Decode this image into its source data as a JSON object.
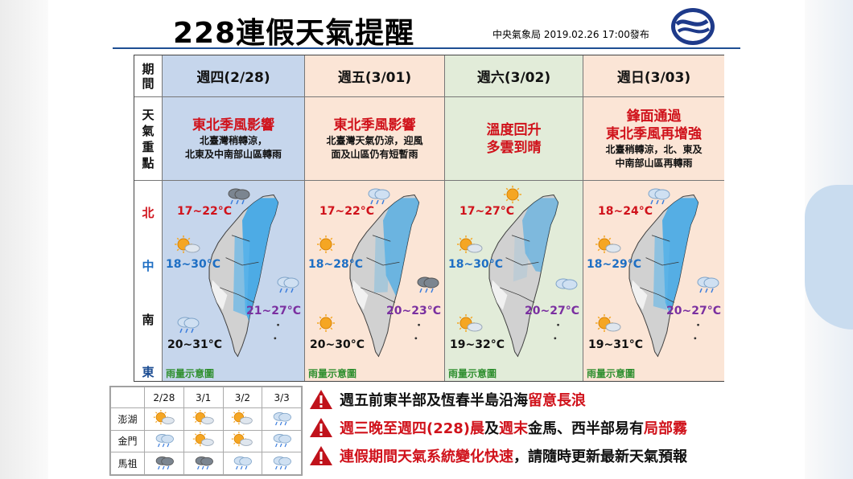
{
  "title": "228連假天氣提醒",
  "issuer": "中央氣象局 2019.02.26 17:00發布",
  "row_labels": {
    "period": [
      "期",
      "間"
    ],
    "focus": [
      "天",
      "氣",
      "重",
      "點"
    ],
    "north": "北",
    "central": "中",
    "south": "南",
    "east": "東"
  },
  "days": [
    {
      "date": "週四(2/28)",
      "headline": [
        "東北季風影響"
      ],
      "detail": [
        "北臺灣稍轉涼，",
        "北東及中南部山區轉雨"
      ],
      "north": "17~22°C",
      "central": "18~30°C",
      "east": "21~27°C",
      "south": "20~31°C",
      "rain_label": "雨量示意圖",
      "bg": "#c6d6ec"
    },
    {
      "date": "週五(3/01)",
      "headline": [
        "東北季風影響"
      ],
      "detail": [
        "北臺灣天氣仍涼，迎風",
        "面及山區仍有短暫雨"
      ],
      "north": "17~22°C",
      "central": "18~28°C",
      "east": "20~23°C",
      "south": "20~30°C",
      "rain_label": "雨量示意圖",
      "bg": "#fbe5d6"
    },
    {
      "date": "週六(3/02)",
      "headline": [
        "溫度回升",
        "多雲到晴"
      ],
      "detail": [],
      "north": "17~27°C",
      "central": "18~30°C",
      "east": "20~27°C",
      "south": "19~32°C",
      "rain_label": "雨量示意圖",
      "bg": "#e2ecd9"
    },
    {
      "date": "週日(3/03)",
      "headline": [
        "鋒面通過",
        "東北季風再增強"
      ],
      "detail": [
        "北臺稍轉涼，北、東及",
        "中南部山區再轉雨"
      ],
      "north": "18~24°C",
      "central": "18~29°C",
      "east": "20~27°C",
      "south": "19~31°C",
      "rain_label": "雨量示意圖",
      "bg": "#fbe5d6"
    }
  ],
  "islands": {
    "dates": [
      "2/28",
      "3/1",
      "3/2",
      "3/3"
    ],
    "rows": [
      {
        "name": "澎湖",
        "icons": [
          "sun-cloud-icon",
          "sun-cloud-icon",
          "sun-cloud-icon",
          "cloud-rain-icon"
        ]
      },
      {
        "name": "金門",
        "icons": [
          "cloud-rain-icon",
          "sun-cloud-icon",
          "sun-cloud-icon",
          "cloud-rain-icon"
        ]
      },
      {
        "name": "馬祖",
        "icons": [
          "dark-cloud-rain-icon",
          "dark-cloud-rain-icon",
          "cloud-rain-icon",
          "cloud-rain-icon"
        ]
      }
    ]
  },
  "warnings": [
    {
      "parts": [
        [
          "週五前東半部及恆春半島沿海",
          "k"
        ],
        [
          "留意長浪",
          "r"
        ]
      ]
    },
    {
      "parts": [
        [
          "週三晚至週四(228)晨",
          "r"
        ],
        [
          "及",
          "k"
        ],
        [
          "週末",
          "r"
        ],
        [
          "金馬、西半部易有",
          "k"
        ],
        [
          "局部霧",
          "r"
        ]
      ]
    },
    {
      "parts": [
        [
          "連假期間天氣系統變化快速",
          "r"
        ],
        [
          "，請隨時更新最新天氣預報",
          "k"
        ]
      ]
    }
  ],
  "colors": {
    "accent": "#d0121b",
    "rule": "#1e4e93",
    "rain": "#2f8f2f",
    "east_temp": "#7a2fa0",
    "central_temp": "#1e6fc4"
  }
}
